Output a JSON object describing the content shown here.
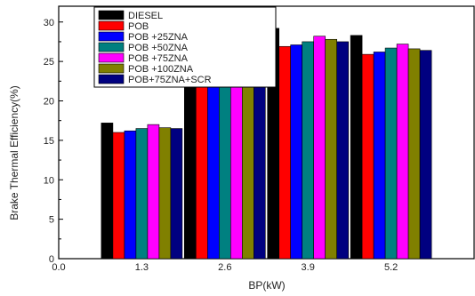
{
  "chart_data": {
    "type": "bar",
    "xlabel": "BP(kW)",
    "ylabel": "Brake Thermal Efficiency(%)",
    "ylim": [
      0,
      32
    ],
    "y_ticks": [
      "0",
      "5",
      "10",
      "15",
      "20",
      "25",
      "30"
    ],
    "x_ticks": [
      "0.0",
      "1.3",
      "2.6",
      "3.9",
      "5.2"
    ],
    "categories": [
      "1.3",
      "2.6",
      "3.9",
      "5.2"
    ],
    "legend_position": "top-left",
    "grid": false,
    "series": [
      {
        "name": "DIESEL",
        "color": "#000000",
        "values": [
          17.2,
          25.2,
          29.2,
          28.3
        ]
      },
      {
        "name": "POB",
        "color": "#ff0000",
        "values": [
          16.0,
          23.6,
          26.9,
          25.9
        ]
      },
      {
        "name": "POB +25ZNA",
        "color": "#0000ff",
        "values": [
          16.2,
          23.6,
          27.1,
          26.2
        ]
      },
      {
        "name": "POB +50ZNA",
        "color": "#008080",
        "values": [
          16.5,
          24.0,
          27.5,
          26.7
        ]
      },
      {
        "name": "POB +75ZNA",
        "color": "#ff00ff",
        "values": [
          17.0,
          24.6,
          28.2,
          27.2
        ]
      },
      {
        "name": "POB +100ZNA",
        "color": "#808000",
        "values": [
          16.6,
          24.0,
          27.8,
          26.6
        ]
      },
      {
        "name": "POB+75ZNA+SCR",
        "color": "#000080",
        "values": [
          16.5,
          23.8,
          27.5,
          26.4
        ]
      }
    ]
  }
}
